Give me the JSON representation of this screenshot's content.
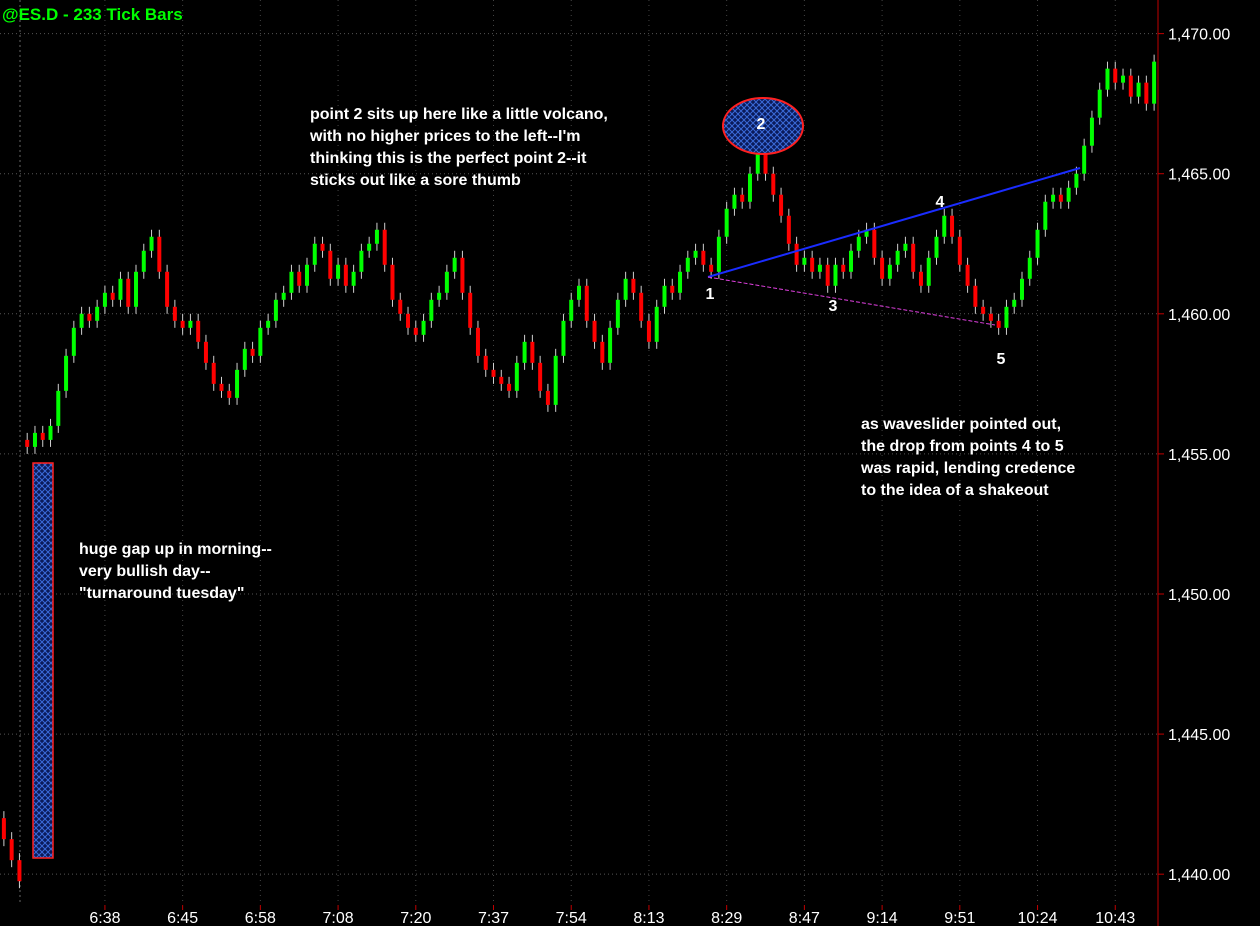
{
  "chart_data": {
    "type": "candlestick",
    "title": "@ES.D - 233 Tick Bars",
    "up_color": "#00ff00",
    "down_color": "#ff0000",
    "wick_color": "#d0d0d0",
    "grid": true,
    "ylim": [
      1438.9,
      1471.2
    ],
    "yticks": [
      {
        "value": 1440,
        "label": "1,440.00"
      },
      {
        "value": 1445,
        "label": "1,445.00"
      },
      {
        "value": 1450,
        "label": "1,450.00"
      },
      {
        "value": 1455,
        "label": "1,455.00"
      },
      {
        "value": 1460,
        "label": "1,460.00"
      },
      {
        "value": 1465,
        "label": "1,465.00"
      },
      {
        "value": 1470,
        "label": "1,470.00"
      }
    ],
    "categories": [
      null,
      null,
      null,
      null,
      null,
      null,
      null,
      null,
      null,
      null,
      null,
      null,
      null,
      "6:38",
      null,
      null,
      null,
      null,
      null,
      null,
      null,
      null,
      null,
      "6:45",
      null,
      null,
      null,
      null,
      null,
      null,
      null,
      null,
      null,
      "6:58",
      null,
      null,
      null,
      null,
      null,
      null,
      null,
      null,
      null,
      "7:08",
      null,
      null,
      null,
      null,
      null,
      null,
      null,
      null,
      null,
      "7:20",
      null,
      null,
      null,
      null,
      null,
      null,
      null,
      null,
      null,
      "7:37",
      null,
      null,
      null,
      null,
      null,
      null,
      null,
      null,
      null,
      "7:54",
      null,
      null,
      null,
      null,
      null,
      null,
      null,
      null,
      null,
      "8:13",
      null,
      null,
      null,
      null,
      null,
      null,
      null,
      null,
      null,
      "8:29",
      null,
      null,
      null,
      null,
      null,
      null,
      null,
      null,
      null,
      "8:47",
      null,
      null,
      null,
      null,
      null,
      null,
      null,
      null,
      null,
      "9:14",
      null,
      null,
      null,
      null,
      null,
      null,
      null,
      null,
      null,
      "9:51",
      null,
      null,
      null,
      null,
      null,
      null,
      null,
      null,
      null,
      "10:24",
      null,
      null,
      null,
      null,
      null,
      null,
      null,
      null,
      null,
      "10:43",
      null,
      null,
      null,
      null,
      null
    ],
    "ohlc": [
      [
        1442,
        1442.25,
        1441,
        1441.25
      ],
      [
        1441.25,
        1441.5,
        1440.25,
        1440.5
      ],
      [
        1440.5,
        1440.75,
        1439.5,
        1439.75
      ],
      [
        1455.5,
        1455.75,
        1455,
        1455.25
      ],
      [
        1455.25,
        1456,
        1455,
        1455.75
      ],
      [
        1455.75,
        1456,
        1455.25,
        1455.5
      ],
      [
        1455.5,
        1456.25,
        1455.25,
        1456
      ],
      [
        1456,
        1457.5,
        1455.75,
        1457.25
      ],
      [
        1457.25,
        1458.75,
        1457,
        1458.5
      ],
      [
        1458.5,
        1459.75,
        1458.25,
        1459.5
      ],
      [
        1459.5,
        1460.25,
        1459.25,
        1460
      ],
      [
        1460,
        1460.25,
        1459.5,
        1459.75
      ],
      [
        1459.75,
        1460.5,
        1459.5,
        1460.25
      ],
      [
        1460.25,
        1461,
        1460,
        1460.75
      ],
      [
        1460.75,
        1461,
        1460.25,
        1460.5
      ],
      [
        1460.5,
        1461.5,
        1460.25,
        1461.25
      ],
      [
        1461.25,
        1461.5,
        1460,
        1460.25
      ],
      [
        1460.25,
        1461.75,
        1460,
        1461.5
      ],
      [
        1461.5,
        1462.5,
        1461.25,
        1462.25
      ],
      [
        1462.25,
        1463,
        1462,
        1462.75
      ],
      [
        1462.75,
        1463,
        1461.25,
        1461.5
      ],
      [
        1461.5,
        1461.75,
        1460,
        1460.25
      ],
      [
        1460.25,
        1460.5,
        1459.5,
        1459.75
      ],
      [
        1459.75,
        1460,
        1459.25,
        1459.5
      ],
      [
        1459.5,
        1460,
        1459.25,
        1459.75
      ],
      [
        1459.75,
        1460,
        1458.75,
        1459
      ],
      [
        1459,
        1459.25,
        1458,
        1458.25
      ],
      [
        1458.25,
        1458.5,
        1457.25,
        1457.5
      ],
      [
        1457.5,
        1457.75,
        1457,
        1457.25
      ],
      [
        1457.25,
        1457.5,
        1456.75,
        1457
      ],
      [
        1457,
        1458.25,
        1456.75,
        1458
      ],
      [
        1458,
        1459,
        1457.75,
        1458.75
      ],
      [
        1458.75,
        1459,
        1458.25,
        1458.5
      ],
      [
        1458.5,
        1459.75,
        1458.25,
        1459.5
      ],
      [
        1459.5,
        1460,
        1459.25,
        1459.75
      ],
      [
        1459.75,
        1460.75,
        1459.5,
        1460.5
      ],
      [
        1460.5,
        1461,
        1460.25,
        1460.75
      ],
      [
        1460.75,
        1461.75,
        1460.5,
        1461.5
      ],
      [
        1461.5,
        1461.75,
        1460.75,
        1461
      ],
      [
        1461,
        1462,
        1460.75,
        1461.75
      ],
      [
        1461.75,
        1462.75,
        1461.5,
        1462.5
      ],
      [
        1462.5,
        1462.75,
        1462,
        1462.25
      ],
      [
        1462.25,
        1462.5,
        1461,
        1461.25
      ],
      [
        1461.25,
        1462,
        1461,
        1461.75
      ],
      [
        1461.75,
        1462,
        1460.75,
        1461
      ],
      [
        1461,
        1461.75,
        1460.75,
        1461.5
      ],
      [
        1461.5,
        1462.5,
        1461.25,
        1462.25
      ],
      [
        1462.25,
        1462.75,
        1462,
        1462.5
      ],
      [
        1462.5,
        1463.25,
        1462.25,
        1463
      ],
      [
        1463,
        1463.25,
        1461.5,
        1461.75
      ],
      [
        1461.75,
        1462,
        1460.25,
        1460.5
      ],
      [
        1460.5,
        1460.75,
        1459.75,
        1460
      ],
      [
        1460,
        1460.25,
        1459.25,
        1459.5
      ],
      [
        1459.5,
        1459.75,
        1459,
        1459.25
      ],
      [
        1459.25,
        1460,
        1459,
        1459.75
      ],
      [
        1459.75,
        1460.75,
        1459.5,
        1460.5
      ],
      [
        1460.5,
        1461,
        1460.25,
        1460.75
      ],
      [
        1460.75,
        1461.75,
        1460.5,
        1461.5
      ],
      [
        1461.5,
        1462.25,
        1461.25,
        1462
      ],
      [
        1462,
        1462.25,
        1460.5,
        1460.75
      ],
      [
        1460.75,
        1461,
        1459.25,
        1459.5
      ],
      [
        1459.5,
        1459.75,
        1458.25,
        1458.5
      ],
      [
        1458.5,
        1458.75,
        1457.75,
        1458
      ],
      [
        1458,
        1458.25,
        1457.5,
        1457.75
      ],
      [
        1457.75,
        1458,
        1457.25,
        1457.5
      ],
      [
        1457.5,
        1457.75,
        1457,
        1457.25
      ],
      [
        1457.25,
        1458.5,
        1457,
        1458.25
      ],
      [
        1458.25,
        1459.25,
        1458,
        1459
      ],
      [
        1459,
        1459.25,
        1458,
        1458.25
      ],
      [
        1458.25,
        1458.5,
        1457,
        1457.25
      ],
      [
        1457.25,
        1457.5,
        1456.5,
        1456.75
      ],
      [
        1456.75,
        1458.75,
        1456.5,
        1458.5
      ],
      [
        1458.5,
        1460,
        1458.25,
        1459.75
      ],
      [
        1459.75,
        1460.75,
        1459.5,
        1460.5
      ],
      [
        1460.5,
        1461.25,
        1460.25,
        1461
      ],
      [
        1461,
        1461.25,
        1459.5,
        1459.75
      ],
      [
        1459.75,
        1460,
        1458.75,
        1459
      ],
      [
        1459,
        1459.25,
        1458,
        1458.25
      ],
      [
        1458.25,
        1459.75,
        1458,
        1459.5
      ],
      [
        1459.5,
        1460.75,
        1459.25,
        1460.5
      ],
      [
        1460.5,
        1461.5,
        1460.25,
        1461.25
      ],
      [
        1461.25,
        1461.5,
        1460.5,
        1460.75
      ],
      [
        1460.75,
        1461,
        1459.5,
        1459.75
      ],
      [
        1459.75,
        1460,
        1458.75,
        1459
      ],
      [
        1459,
        1460.5,
        1458.75,
        1460.25
      ],
      [
        1460.25,
        1461.25,
        1460,
        1461
      ],
      [
        1461,
        1461.25,
        1460.5,
        1460.75
      ],
      [
        1460.75,
        1461.75,
        1460.5,
        1461.5
      ],
      [
        1461.5,
        1462.25,
        1461.25,
        1462
      ],
      [
        1462,
        1462.5,
        1461.75,
        1462.25
      ],
      [
        1462.25,
        1462.5,
        1461.5,
        1461.75
      ],
      [
        1461.75,
        1462,
        1461.25,
        1461.5
      ],
      [
        1461.5,
        1463,
        1461.25,
        1462.75
      ],
      [
        1462.75,
        1464,
        1462.5,
        1463.75
      ],
      [
        1463.75,
        1464.5,
        1463.5,
        1464.25
      ],
      [
        1464.25,
        1464.5,
        1463.75,
        1464
      ],
      [
        1464,
        1465.25,
        1463.75,
        1465
      ],
      [
        1465,
        1466,
        1464.75,
        1465.75
      ],
      [
        1465.75,
        1466,
        1464.75,
        1465
      ],
      [
        1465,
        1465.25,
        1464,
        1464.25
      ],
      [
        1464.25,
        1464.5,
        1463.25,
        1463.5
      ],
      [
        1463.5,
        1463.75,
        1462.25,
        1462.5
      ],
      [
        1462.5,
        1462.75,
        1461.5,
        1461.75
      ],
      [
        1461.75,
        1462.25,
        1461.5,
        1462
      ],
      [
        1462,
        1462.25,
        1461.25,
        1461.5
      ],
      [
        1461.5,
        1462,
        1461.25,
        1461.75
      ],
      [
        1461.75,
        1462,
        1460.75,
        1461
      ],
      [
        1461,
        1462,
        1460.75,
        1461.75
      ],
      [
        1461.75,
        1462,
        1461.25,
        1461.5
      ],
      [
        1461.5,
        1462.5,
        1461.25,
        1462.25
      ],
      [
        1462.25,
        1463,
        1462,
        1462.75
      ],
      [
        1462.75,
        1463.25,
        1462.5,
        1463
      ],
      [
        1463,
        1463.25,
        1461.75,
        1462
      ],
      [
        1462,
        1462.25,
        1461,
        1461.25
      ],
      [
        1461.25,
        1462,
        1461,
        1461.75
      ],
      [
        1461.75,
        1462.5,
        1461.5,
        1462.25
      ],
      [
        1462.25,
        1462.75,
        1462,
        1462.5
      ],
      [
        1462.5,
        1462.75,
        1461.25,
        1461.5
      ],
      [
        1461.5,
        1461.75,
        1460.75,
        1461
      ],
      [
        1461,
        1462.25,
        1460.75,
        1462
      ],
      [
        1462,
        1463,
        1461.75,
        1462.75
      ],
      [
        1462.75,
        1463.75,
        1462.5,
        1463.5
      ],
      [
        1463.5,
        1463.75,
        1462.5,
        1462.75
      ],
      [
        1462.75,
        1463,
        1461.5,
        1461.75
      ],
      [
        1461.75,
        1462,
        1460.75,
        1461
      ],
      [
        1461,
        1461.25,
        1460,
        1460.25
      ],
      [
        1460.25,
        1460.5,
        1459.75,
        1460
      ],
      [
        1460,
        1460.25,
        1459.5,
        1459.75
      ],
      [
        1459.75,
        1460,
        1459.25,
        1459.5
      ],
      [
        1459.5,
        1460.5,
        1459.25,
        1460.25
      ],
      [
        1460.25,
        1460.75,
        1460,
        1460.5
      ],
      [
        1460.5,
        1461.5,
        1460.25,
        1461.25
      ],
      [
        1461.25,
        1462.25,
        1461,
        1462
      ],
      [
        1462,
        1463.25,
        1461.75,
        1463
      ],
      [
        1463,
        1464.25,
        1462.75,
        1464
      ],
      [
        1464,
        1464.5,
        1463.75,
        1464.25
      ],
      [
        1464.25,
        1464.5,
        1463.75,
        1464
      ],
      [
        1464,
        1464.75,
        1463.75,
        1464.5
      ],
      [
        1464.5,
        1465.25,
        1464.25,
        1465
      ],
      [
        1465,
        1466.25,
        1464.75,
        1466
      ],
      [
        1466,
        1467.25,
        1465.75,
        1467
      ],
      [
        1467,
        1468.25,
        1466.75,
        1468
      ],
      [
        1468,
        1469,
        1467.75,
        1468.75
      ],
      [
        1468.75,
        1469,
        1468,
        1468.25
      ],
      [
        1468.25,
        1468.75,
        1468,
        1468.5
      ],
      [
        1468.5,
        1468.75,
        1467.5,
        1467.75
      ],
      [
        1467.75,
        1468.5,
        1467.5,
        1468.25
      ],
      [
        1468.25,
        1468.5,
        1467.25,
        1467.5
      ],
      [
        1467.5,
        1469.25,
        1467.25,
        1469
      ]
    ],
    "point_labels": [
      "1",
      "2",
      "3",
      "4",
      "5"
    ],
    "annotations": [
      [
        "point 2 sits up here like a little volcano,",
        "with no higher prices to the left--I'm",
        "thinking this is the perfect point 2--it",
        "sticks out like a sore thumb"
      ],
      [
        "as waveslider pointed out,",
        "the drop from points 4 to 5",
        "was rapid, lending credence",
        "to the idea of a shakeout"
      ],
      [
        "huge gap up in morning--",
        "very bullish day--",
        "\"turnaround tuesday\""
      ]
    ]
  }
}
